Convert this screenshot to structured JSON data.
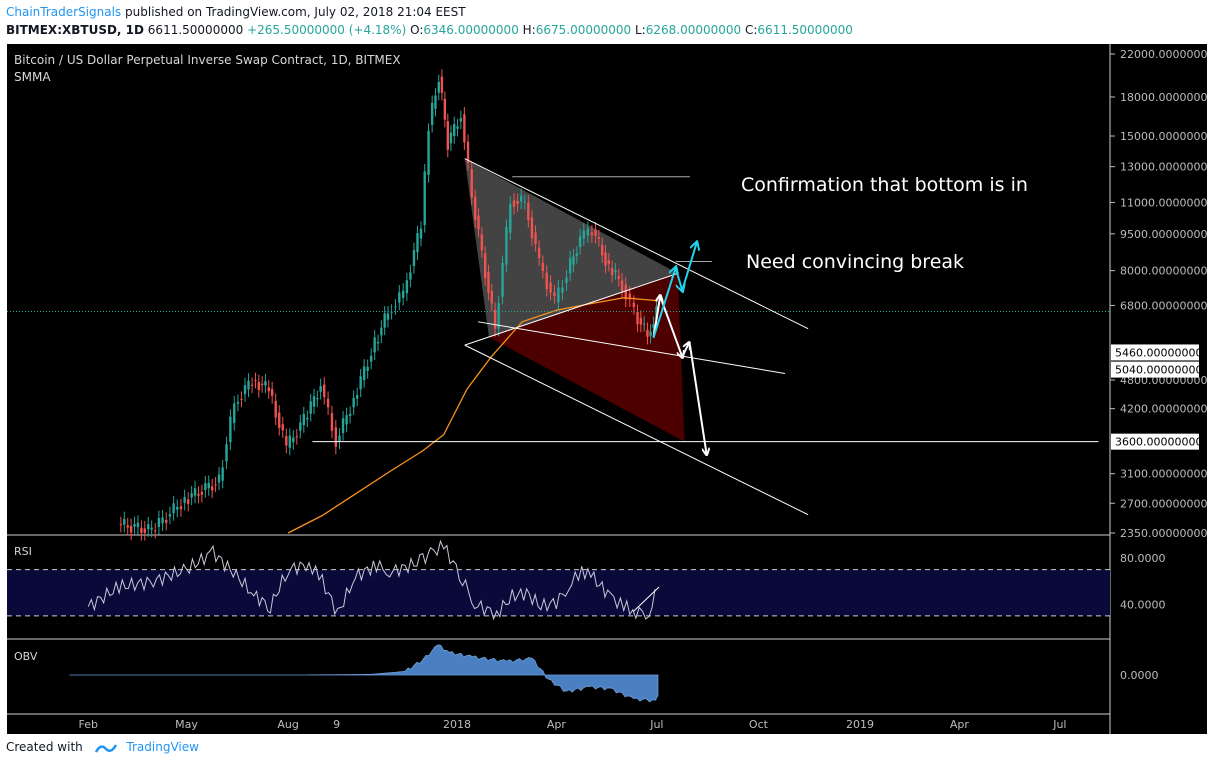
{
  "header": {
    "author": "ChainTraderSignals",
    "published": "published on TradingView.com, July 02, 2018 21:04 EEST",
    "symbol": "BITMEX:XBTUSD, 1D",
    "last": "6611.50000000",
    "change": "+265.50000000 (+4.18%)",
    "o_label": "O:",
    "o_value": "6346.00000000",
    "h_label": "H:",
    "h_value": "6675.00000000",
    "l_label": "L:",
    "l_value": "6268.00000000",
    "c_label": "C:",
    "c_value": "6611.50000000"
  },
  "legend": {
    "title": "Bitcoin / US Dollar Perpetual Inverse Swap Contract, 1D, BITMEX",
    "indicator": "SMMA"
  },
  "annotations": {
    "confirmation": "Confirmation that bottom is in",
    "break": "Need convincing break"
  },
  "footer": {
    "created": "Created with",
    "brand": "TradingView"
  },
  "colors": {
    "up": "#26a69a",
    "down": "#ef5350",
    "smma": "#f7931a",
    "rsi": "#c8c8d8",
    "obv": "#4a7fc1",
    "header_up": "#26a69a",
    "link": "#2196f3"
  },
  "chart_data": [
    {
      "type": "line",
      "title": "Bitcoin / US Dollar Perpetual Inverse Swap Contract, 1D, BITMEX",
      "scale": "log",
      "y_tick_labels": [
        "22000.00000000",
        "18000.00000000",
        "15000.00000000",
        "13000.00000000",
        "11000.00000000",
        "9500.00000000",
        "8000.00000000",
        "6800.00000000",
        "4800.00000000",
        "4200.00000000",
        "3100.00000000",
        "2700.00000000",
        "2350.00000000"
      ],
      "y_tick_values": [
        22000,
        18000,
        15000,
        13000,
        11000,
        9500,
        8000,
        6800,
        4800,
        4200,
        3100,
        2700,
        2350
      ],
      "price_tags": [
        {
          "label": "5460.00000000",
          "value": 5460
        },
        {
          "label": "5040.00000000",
          "value": 5040
        },
        {
          "label": "3600.00000000",
          "value": 3600
        }
      ],
      "x_tick_labels": [
        "Feb",
        "May",
        "Aug",
        "9",
        "2018",
        "Apr",
        "Jul",
        "Oct",
        "2019",
        "Apr",
        "Jul"
      ],
      "x_tick_dates": [
        "2017-02-01",
        "2017-05-01",
        "2017-08-01",
        "2017-09-14",
        "2018-01-01",
        "2018-04-01",
        "2018-07-01",
        "2018-10-01",
        "2019-01-01",
        "2019-04-01",
        "2019-07-01"
      ],
      "current_price": 6611.5,
      "series": [
        {
          "name": "XBTUSD close (approx.)",
          "x": [
            "2017-03-01",
            "2017-04-01",
            "2017-05-01",
            "2017-06-01",
            "2017-06-15",
            "2017-07-01",
            "2017-07-16",
            "2017-08-01",
            "2017-08-20",
            "2017-09-01",
            "2017-09-15",
            "2017-10-01",
            "2017-10-20",
            "2017-11-01",
            "2017-11-15",
            "2017-12-01",
            "2017-12-08",
            "2017-12-17",
            "2017-12-25",
            "2018-01-06",
            "2018-01-16",
            "2018-02-06",
            "2018-02-20",
            "2018-03-05",
            "2018-03-18",
            "2018-04-01",
            "2018-04-12",
            "2018-04-24",
            "2018-05-05",
            "2018-05-20",
            "2018-06-01",
            "2018-06-12",
            "2018-06-24",
            "2018-07-02"
          ],
          "y": [
            2450,
            2380,
            2750,
            3000,
            4300,
            4800,
            4600,
            3500,
            4100,
            4700,
            3600,
            4400,
            5700,
            6600,
            7200,
            9900,
            15800,
            19800,
            14500,
            16600,
            11300,
            6100,
            11100,
            11000,
            8300,
            6900,
            7900,
            9300,
            9700,
            8100,
            7500,
            6600,
            5900,
            6611
          ]
        },
        {
          "name": "SMMA",
          "x": [
            "2017-08-01",
            "2017-09-01",
            "2017-10-01",
            "2017-11-01",
            "2017-12-01",
            "2017-12-20",
            "2018-01-10",
            "2018-02-01",
            "2018-03-01",
            "2018-04-01",
            "2018-05-01",
            "2018-06-01",
            "2018-07-02"
          ],
          "y": [
            2350,
            2550,
            2820,
            3130,
            3450,
            3720,
            4600,
            5350,
            6300,
            6650,
            6850,
            7050,
            6950
          ]
        }
      ]
    },
    {
      "type": "line",
      "title": "RSI",
      "ylim": [
        10,
        100
      ],
      "y_tick_labels": [
        "80.0000",
        "40.0000"
      ],
      "y_tick_values": [
        80,
        40
      ],
      "band": [
        70,
        30
      ],
      "series": [
        {
          "name": "RSI",
          "x": [
            "2017-02-01",
            "2017-03-01",
            "2017-04-01",
            "2017-05-01",
            "2017-05-25",
            "2017-06-15",
            "2017-07-01",
            "2017-07-16",
            "2017-08-01",
            "2017-08-20",
            "2017-09-01",
            "2017-09-15",
            "2017-10-01",
            "2017-10-20",
            "2017-11-01",
            "2017-11-15",
            "2017-12-01",
            "2017-12-08",
            "2017-12-20",
            "2018-01-06",
            "2018-01-17",
            "2018-02-06",
            "2018-02-20",
            "2018-03-05",
            "2018-03-18",
            "2018-04-01",
            "2018-04-12",
            "2018-04-24",
            "2018-05-05",
            "2018-05-20",
            "2018-06-01",
            "2018-06-12",
            "2018-06-24",
            "2018-07-02"
          ],
          "y": [
            38,
            55,
            60,
            70,
            85,
            65,
            48,
            38,
            70,
            75,
            60,
            32,
            64,
            74,
            68,
            72,
            78,
            85,
            90,
            62,
            40,
            32,
            47,
            50,
            38,
            42,
            55,
            70,
            62,
            47,
            38,
            34,
            32,
            55
          ]
        }
      ]
    },
    {
      "type": "area",
      "title": "OBV",
      "y_tick_labels": [
        "0.0000"
      ],
      "y_tick_values": [
        0
      ],
      "series": [
        {
          "name": "OBV (relative)",
          "x": [
            "2017-01-15",
            "2017-06-01",
            "2017-08-15",
            "2017-10-15",
            "2017-11-15",
            "2017-12-01",
            "2017-12-15",
            "2017-12-25",
            "2018-01-15",
            "2018-02-15",
            "2018-03-10",
            "2018-03-25",
            "2018-04-10",
            "2018-05-01",
            "2018-05-20",
            "2018-06-10",
            "2018-06-30",
            "2018-07-02"
          ],
          "y": [
            0.0,
            0.0,
            0.0,
            0.02,
            0.12,
            0.5,
            1.0,
            0.75,
            0.6,
            0.45,
            0.55,
            -0.15,
            -0.55,
            -0.4,
            -0.45,
            -0.8,
            -0.85,
            -0.7
          ]
        }
      ]
    }
  ]
}
